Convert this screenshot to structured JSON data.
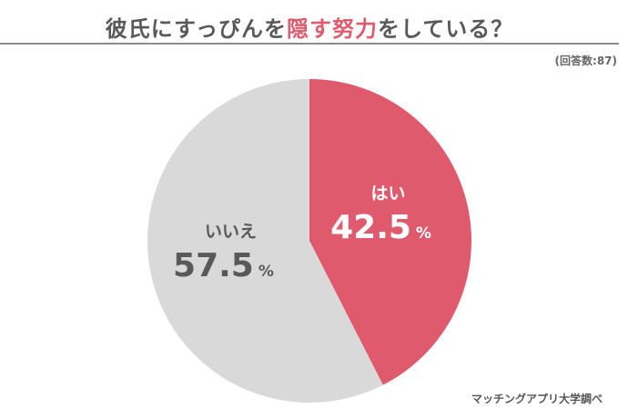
{
  "title": {
    "before": "彼氏にすっぴんを",
    "highlight": "隠す努力",
    "after": "をしている？"
  },
  "respondents": "(回答数:87)",
  "source": "マッチングアプリ大学調べ",
  "chart_data": {
    "type": "pie",
    "slices": [
      {
        "label": "はい",
        "value": 42.5,
        "display": "42.5",
        "color": "#e05a6e",
        "text_color": "#ffffff"
      },
      {
        "label": "いいえ",
        "value": 57.5,
        "display": "57.5",
        "color": "#d9d9d9",
        "text_color": "#595959"
      }
    ],
    "unit": "%",
    "start": "top",
    "direction": "clockwise"
  }
}
